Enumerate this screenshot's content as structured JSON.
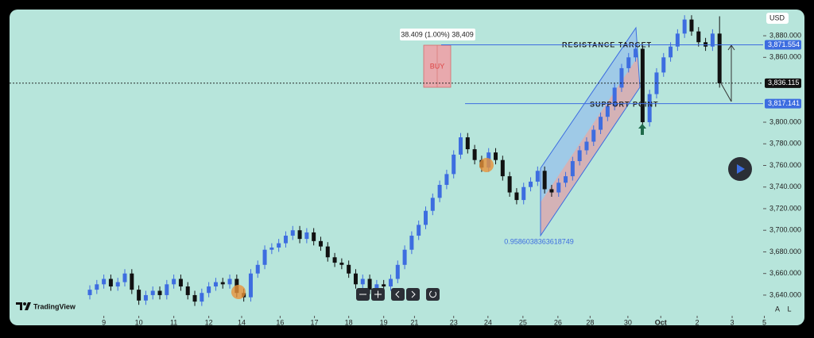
{
  "chart_data": {
    "type": "candlestick",
    "currency": "USD",
    "brand": "TradingView",
    "open": [
      3640,
      3645,
      3650,
      3655,
      3648,
      3652,
      3660,
      3645,
      3635,
      3640,
      3644,
      3640,
      3650,
      3655,
      3648,
      3640,
      3634,
      3642,
      3648,
      3652,
      3650,
      3655,
      3642,
      3638,
      3660,
      3668,
      3682,
      3684,
      3688,
      3695,
      3700,
      3692,
      3698,
      3690,
      3685,
      3675,
      3670,
      3668,
      3660,
      3650,
      3655,
      3645,
      3650,
      3648,
      3655,
      3668,
      3682,
      3695,
      3705,
      3718,
      3730,
      3742,
      3752,
      3770,
      3786,
      3775,
      3765,
      3758,
      3772,
      3765,
      3750,
      3735,
      3728,
      3740,
      3745,
      3755,
      3738,
      3735,
      3744,
      3750,
      3764,
      3774,
      3782,
      3793,
      3805,
      3815,
      3832,
      3850,
      3860,
      3868,
      3800,
      3826,
      3846,
      3860,
      3870,
      3882,
      3895,
      3884,
      3874,
      3870,
      3882
    ],
    "high": [
      3649,
      3654,
      3659,
      3659,
      3656,
      3664,
      3664,
      3649,
      3644,
      3648,
      3648,
      3654,
      3659,
      3659,
      3652,
      3644,
      3646,
      3652,
      3656,
      3656,
      3659,
      3659,
      3646,
      3664,
      3672,
      3686,
      3688,
      3692,
      3699,
      3704,
      3704,
      3702,
      3702,
      3694,
      3689,
      3679,
      3674,
      3672,
      3664,
      3659,
      3659,
      3654,
      3654,
      3659,
      3672,
      3686,
      3699,
      3709,
      3722,
      3734,
      3746,
      3756,
      3774,
      3790,
      3790,
      3779,
      3769,
      3776,
      3776,
      3769,
      3754,
      3739,
      3744,
      3749,
      3759,
      3759,
      3742,
      3748,
      3754,
      3768,
      3778,
      3786,
      3797,
      3809,
      3819,
      3836,
      3854,
      3864,
      3872,
      3872,
      3830,
      3850,
      3864,
      3874,
      3886,
      3899,
      3899,
      3888,
      3878,
      3886,
      3898
    ],
    "low": [
      3636,
      3641,
      3646,
      3644,
      3644,
      3648,
      3641,
      3631,
      3631,
      3636,
      3636,
      3636,
      3646,
      3644,
      3636,
      3630,
      3630,
      3638,
      3644,
      3646,
      3646,
      3638,
      3634,
      3634,
      3656,
      3664,
      3678,
      3680,
      3684,
      3691,
      3688,
      3688,
      3686,
      3681,
      3671,
      3666,
      3664,
      3656,
      3646,
      3646,
      3641,
      3641,
      3644,
      3644,
      3651,
      3664,
      3678,
      3691,
      3701,
      3714,
      3726,
      3738,
      3748,
      3766,
      3771,
      3761,
      3754,
      3754,
      3761,
      3746,
      3731,
      3724,
      3724,
      3736,
      3741,
      3734,
      3731,
      3731,
      3740,
      3746,
      3760,
      3770,
      3778,
      3789,
      3801,
      3811,
      3828,
      3846,
      3856,
      3795,
      3796,
      3822,
      3842,
      3856,
      3866,
      3878,
      3880,
      3870,
      3866,
      3866,
      3832
    ],
    "close": [
      3645,
      3650,
      3655,
      3648,
      3652,
      3660,
      3645,
      3635,
      3640,
      3644,
      3640,
      3650,
      3655,
      3648,
      3640,
      3634,
      3642,
      3648,
      3652,
      3650,
      3655,
      3642,
      3638,
      3660,
      3668,
      3682,
      3684,
      3688,
      3695,
      3700,
      3692,
      3698,
      3690,
      3685,
      3675,
      3670,
      3668,
      3660,
      3650,
      3655,
      3645,
      3650,
      3648,
      3655,
      3668,
      3682,
      3695,
      3705,
      3718,
      3730,
      3742,
      3752,
      3770,
      3786,
      3775,
      3765,
      3758,
      3772,
      3765,
      3750,
      3735,
      3728,
      3740,
      3745,
      3755,
      3738,
      3735,
      3744,
      3750,
      3764,
      3774,
      3782,
      3793,
      3805,
      3815,
      3832,
      3850,
      3860,
      3868,
      3800,
      3826,
      3846,
      3860,
      3870,
      3882,
      3895,
      3884,
      3874,
      3870,
      3882,
      3836
    ],
    "up_color": "#3d6de0",
    "down_color": "#111111",
    "xlim": [
      0,
      96
    ],
    "xticks": [
      {
        "value": 2,
        "label": "9"
      },
      {
        "value": 7,
        "label": "10"
      },
      {
        "value": 12,
        "label": "11"
      },
      {
        "value": 17,
        "label": "12"
      },
      {
        "value": 21.7,
        "label": "14"
      },
      {
        "value": 27.2,
        "label": "16"
      },
      {
        "value": 32.1,
        "label": "17"
      },
      {
        "value": 37,
        "label": "18"
      },
      {
        "value": 42,
        "label": "19"
      },
      {
        "value": 46.4,
        "label": "21"
      },
      {
        "value": 52,
        "label": "23"
      },
      {
        "value": 56.9,
        "label": "24"
      },
      {
        "value": 61.9,
        "label": "25"
      },
      {
        "value": 66.9,
        "label": "26"
      },
      {
        "value": 71.5,
        "label": "28"
      },
      {
        "value": 76.9,
        "label": "30"
      },
      {
        "value": 81.6,
        "label": "Oct"
      },
      {
        "value": 86.8,
        "label": "2"
      },
      {
        "value": 91.8,
        "label": "3"
      },
      {
        "value": 96.4,
        "label": "5"
      }
    ],
    "ylim": [
      3619.4,
      3902.8
    ],
    "yticks": [
      {
        "value": 3640,
        "label": "3,640.000"
      },
      {
        "value": 3660,
        "label": "3,660.000"
      },
      {
        "value": 3680,
        "label": "3,680.000"
      },
      {
        "value": 3700,
        "label": "3,700.000"
      },
      {
        "value": 3720,
        "label": "3,720.000"
      },
      {
        "value": 3740,
        "label": "3,740.000"
      },
      {
        "value": 3760,
        "label": "3,760.000"
      },
      {
        "value": 3780,
        "label": "3,780.000"
      },
      {
        "value": 3800,
        "label": "3,800.000"
      },
      {
        "value": 3860,
        "label": "3,860.000"
      },
      {
        "value": 3880,
        "label": "3,880.000"
      }
    ],
    "price_lines": [
      {
        "value": 3871.554,
        "label": "3,871.554",
        "color": "#3d6de0"
      },
      {
        "value": 3836.115,
        "label": "3,836.115",
        "color": "#111111"
      },
      {
        "value": 3817.141,
        "label": "3,817.141",
        "color": "#3d6de0"
      }
    ],
    "annotations": {
      "measure": "38.409 (1.00%) 38,409",
      "buy": "BUY",
      "resistance": "RESISTANCE TARGET",
      "support": "SUPPORT POINT",
      "channel": "0.9586038363618749"
    },
    "scale_buttons": [
      "A",
      "L"
    ]
  }
}
